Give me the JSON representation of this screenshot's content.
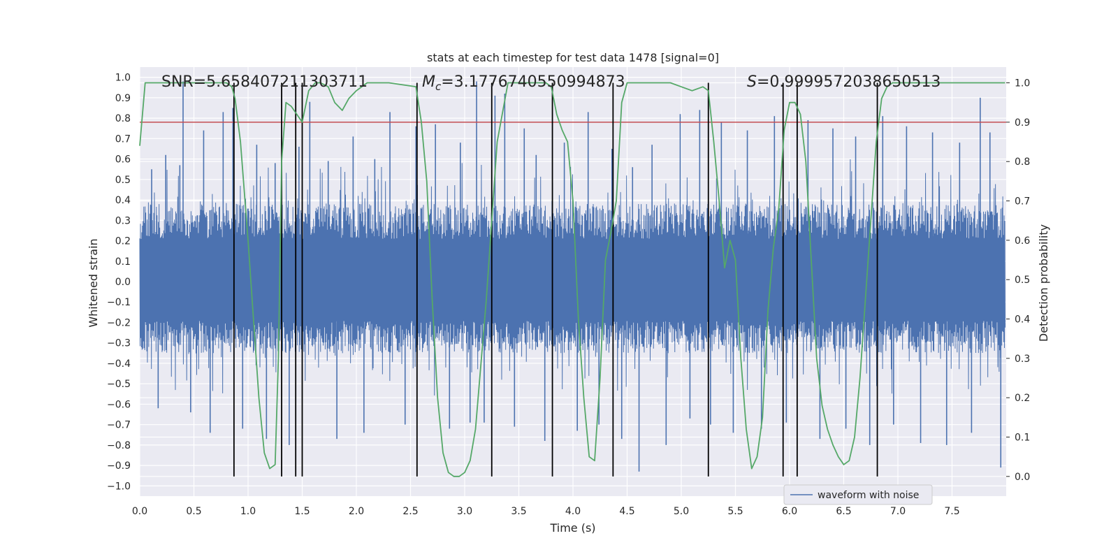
{
  "chart_data": {
    "type": "line",
    "title": "stats at each timestep for test data 1478 [signal=0]",
    "xlabel": "Time (s)",
    "ylabel_left": "Whitened strain",
    "ylabel_right": "Detection probability",
    "xlim": [
      0.0,
      8.0
    ],
    "ylim_left": [
      -1.05,
      1.05
    ],
    "ylim_right": [
      -0.05,
      1.04
    ],
    "x_ticks": [
      "0.0",
      "0.5",
      "1.0",
      "1.5",
      "2.0",
      "2.5",
      "3.0",
      "3.5",
      "4.0",
      "4.5",
      "5.0",
      "5.5",
      "6.0",
      "6.5",
      "7.0",
      "7.5"
    ],
    "y_ticks_left": [
      "1.0",
      "0.9",
      "0.8",
      "0.7",
      "0.6",
      "0.5",
      "0.4",
      "0.3",
      "0.2",
      "0.1",
      "0.0",
      "−0.1",
      "−0.2",
      "−0.3",
      "−0.4",
      "−0.5",
      "−0.6",
      "−0.7",
      "−0.8",
      "−0.9",
      "−1.0"
    ],
    "y_ticks_right": [
      "1.0",
      "0.9",
      "0.8",
      "0.7",
      "0.6",
      "0.5",
      "0.4",
      "0.3",
      "0.2",
      "0.1",
      "0.0"
    ],
    "annotations": {
      "snr": "SNR=5.658407211303711",
      "mc_symbol": "M",
      "mc_sub": "c",
      "mc_value": "=3.1776740550994873",
      "s_symbol": "S",
      "s_value": "=0.9999572038650513"
    },
    "legend": {
      "label": "waveform with noise",
      "placement": "lower-right"
    },
    "grid": true,
    "colors": {
      "background": "#eaeaf2",
      "grid": "#ffffff",
      "waveform": "#4c72b0",
      "probability": "#55a868",
      "threshold": "#c44e52",
      "events": "#000000"
    },
    "threshold_probability": 0.9,
    "event_markers_x": [
      0.87,
      1.31,
      1.44,
      1.5,
      2.56,
      3.25,
      3.81,
      4.37,
      5.25,
      5.94,
      6.07,
      6.81
    ],
    "waveform": {
      "label": "waveform with noise",
      "noise_band": [
        -0.35,
        0.38
      ],
      "spikes": [
        {
          "x": 0.11,
          "y": 0.55
        },
        {
          "x": 0.17,
          "y": -0.62
        },
        {
          "x": 0.24,
          "y": 0.62
        },
        {
          "x": 0.37,
          "y": 0.57
        },
        {
          "x": 0.4,
          "y": 0.98
        },
        {
          "x": 0.47,
          "y": -0.64
        },
        {
          "x": 0.59,
          "y": 0.74
        },
        {
          "x": 0.65,
          "y": -0.74
        },
        {
          "x": 0.77,
          "y": 0.83
        },
        {
          "x": 0.86,
          "y": 0.85
        },
        {
          "x": 0.95,
          "y": -0.72
        },
        {
          "x": 1.08,
          "y": 0.67
        },
        {
          "x": 1.17,
          "y": -0.77
        },
        {
          "x": 1.25,
          "y": 0.58
        },
        {
          "x": 1.38,
          "y": -0.8
        },
        {
          "x": 1.47,
          "y": 0.66
        },
        {
          "x": 1.57,
          "y": 0.88
        },
        {
          "x": 1.74,
          "y": 0.59
        },
        {
          "x": 1.82,
          "y": -0.77
        },
        {
          "x": 1.97,
          "y": 0.71
        },
        {
          "x": 2.07,
          "y": -0.74
        },
        {
          "x": 2.17,
          "y": 0.6
        },
        {
          "x": 2.31,
          "y": 0.83
        },
        {
          "x": 2.45,
          "y": -0.7
        },
        {
          "x": 2.55,
          "y": 0.76
        },
        {
          "x": 2.73,
          "y": 0.77
        },
        {
          "x": 2.86,
          "y": -0.72
        },
        {
          "x": 2.96,
          "y": 0.68
        },
        {
          "x": 3.05,
          "y": -0.69
        },
        {
          "x": 3.11,
          "y": 0.98
        },
        {
          "x": 3.18,
          "y": -0.69
        },
        {
          "x": 3.28,
          "y": 0.91
        },
        {
          "x": 3.37,
          "y": 0.92
        },
        {
          "x": 3.46,
          "y": -0.71
        },
        {
          "x": 3.55,
          "y": 0.75
        },
        {
          "x": 3.66,
          "y": 0.62
        },
        {
          "x": 3.74,
          "y": -0.78
        },
        {
          "x": 3.92,
          "y": 0.68
        },
        {
          "x": 4.04,
          "y": -0.73
        },
        {
          "x": 4.14,
          "y": 0.83
        },
        {
          "x": 4.24,
          "y": -0.7
        },
        {
          "x": 4.36,
          "y": 0.65
        },
        {
          "x": 4.45,
          "y": -0.77
        },
        {
          "x": 4.55,
          "y": 0.56
        },
        {
          "x": 4.61,
          "y": -0.93
        },
        {
          "x": 4.73,
          "y": 0.67
        },
        {
          "x": 4.86,
          "y": -0.8
        },
        {
          "x": 4.99,
          "y": 0.82
        },
        {
          "x": 5.08,
          "y": -0.67
        },
        {
          "x": 5.17,
          "y": 0.84
        },
        {
          "x": 5.27,
          "y": -0.7
        },
        {
          "x": 5.37,
          "y": 0.78
        },
        {
          "x": 5.48,
          "y": -0.74
        },
        {
          "x": 5.61,
          "y": 0.74
        },
        {
          "x": 5.74,
          "y": -0.72
        },
        {
          "x": 5.86,
          "y": 0.81
        },
        {
          "x": 5.97,
          "y": -0.69
        },
        {
          "x": 6.07,
          "y": 0.82
        },
        {
          "x": 6.17,
          "y": 0.79
        },
        {
          "x": 6.28,
          "y": -0.77
        },
        {
          "x": 6.4,
          "y": 0.75
        },
        {
          "x": 6.52,
          "y": -0.72
        },
        {
          "x": 6.61,
          "y": 0.71
        },
        {
          "x": 6.74,
          "y": -0.8
        },
        {
          "x": 6.86,
          "y": 0.81
        },
        {
          "x": 6.96,
          "y": -0.7
        },
        {
          "x": 7.08,
          "y": 0.76
        },
        {
          "x": 7.21,
          "y": -0.79
        },
        {
          "x": 7.32,
          "y": 0.73
        },
        {
          "x": 7.45,
          "y": -0.8
        },
        {
          "x": 7.57,
          "y": 0.68
        },
        {
          "x": 7.68,
          "y": -0.74
        },
        {
          "x": 7.76,
          "y": 0.9
        },
        {
          "x": 7.85,
          "y": 0.73
        },
        {
          "x": 7.95,
          "y": -0.91
        }
      ]
    },
    "probability": {
      "label": "Detection probability",
      "x": [
        0.0,
        0.05,
        0.1,
        0.2,
        0.8,
        0.85,
        0.88,
        0.93,
        1.0,
        1.05,
        1.1,
        1.15,
        1.2,
        1.25,
        1.28,
        1.31,
        1.35,
        1.4,
        1.45,
        1.5,
        1.56,
        1.62,
        1.67,
        1.74,
        1.8,
        1.87,
        1.93,
        2.0,
        2.1,
        2.3,
        2.55,
        2.6,
        2.65,
        2.7,
        2.75,
        2.8,
        2.85,
        2.9,
        2.95,
        3.0,
        3.05,
        3.1,
        3.2,
        3.3,
        3.4,
        3.6,
        3.75,
        3.8,
        3.85,
        3.9,
        3.95,
        4.0,
        4.05,
        4.1,
        4.15,
        4.2,
        4.25,
        4.3,
        4.35,
        4.4,
        4.45,
        4.5,
        4.7,
        4.9,
        5.0,
        5.1,
        5.2,
        5.25,
        5.3,
        5.35,
        5.4,
        5.45,
        5.5,
        5.55,
        5.6,
        5.65,
        5.7,
        5.75,
        5.8,
        5.85,
        5.9,
        5.95,
        6.0,
        6.05,
        6.1,
        6.15,
        6.2,
        6.25,
        6.3,
        6.35,
        6.4,
        6.45,
        6.5,
        6.55,
        6.6,
        6.65,
        6.7,
        6.75,
        6.8,
        6.85,
        6.9,
        6.95,
        7.0,
        7.2,
        7.5,
        7.99
      ],
      "y": [
        0.84,
        1.0,
        1.0,
        1.0,
        1.0,
        0.99,
        0.96,
        0.85,
        0.6,
        0.4,
        0.2,
        0.06,
        0.02,
        0.03,
        0.3,
        0.8,
        0.95,
        0.94,
        0.92,
        0.9,
        0.98,
        1.0,
        1.0,
        0.99,
        0.95,
        0.93,
        0.96,
        0.98,
        1.0,
        1.0,
        0.99,
        0.9,
        0.75,
        0.45,
        0.2,
        0.06,
        0.01,
        0.0,
        0.0,
        0.01,
        0.04,
        0.12,
        0.45,
        0.85,
        1.0,
        1.0,
        1.0,
        0.99,
        0.92,
        0.88,
        0.85,
        0.7,
        0.4,
        0.2,
        0.05,
        0.04,
        0.25,
        0.55,
        0.62,
        0.7,
        0.95,
        1.0,
        1.0,
        1.0,
        0.99,
        0.98,
        0.99,
        0.98,
        0.85,
        0.7,
        0.53,
        0.6,
        0.55,
        0.3,
        0.12,
        0.02,
        0.05,
        0.15,
        0.42,
        0.58,
        0.68,
        0.88,
        0.95,
        0.95,
        0.92,
        0.8,
        0.55,
        0.3,
        0.18,
        0.12,
        0.08,
        0.05,
        0.03,
        0.04,
        0.1,
        0.25,
        0.45,
        0.65,
        0.85,
        0.96,
        0.99,
        1.0,
        1.0,
        1.0,
        1.0,
        1.0
      ]
    }
  }
}
